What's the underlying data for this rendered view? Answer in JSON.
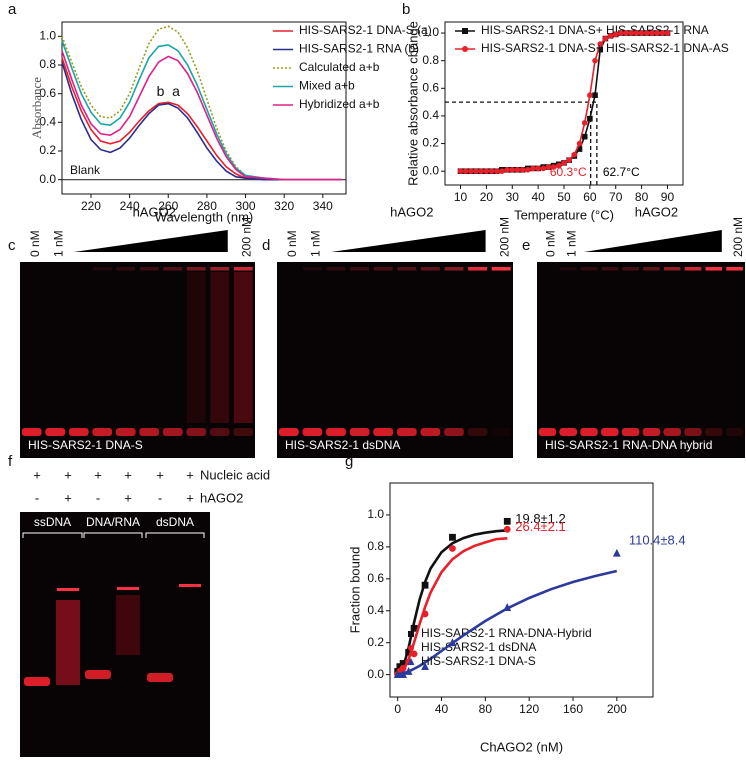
{
  "chart_data": [
    {
      "type": "line",
      "panel": "a",
      "x_label": "Wavelength (nm)",
      "y_label": "Absorbance",
      "x": [
        205,
        210,
        215,
        220,
        225,
        230,
        235,
        240,
        245,
        250,
        255,
        260,
        265,
        270,
        275,
        280,
        285,
        290,
        295,
        300,
        310,
        320,
        330,
        340,
        350
      ],
      "xlim": [
        205,
        352
      ],
      "xticks": [
        220,
        240,
        260,
        280,
        300,
        320,
        340
      ],
      "ylim": [
        -0.1,
        1.1
      ],
      "yticks": [
        {
          "value": 0,
          "label": "0.0"
        },
        0.2,
        0.4,
        0.6,
        0.8,
        {
          "value": 1,
          "label": "1.0"
        }
      ],
      "hline": 0,
      "annotations": [
        "Blank",
        "b",
        "a"
      ],
      "series": [
        {
          "name": "HIS-SARS2-1 DNA-S (a)",
          "color": "#e8202a",
          "line": "solid",
          "values": [
            0.85,
            0.65,
            0.48,
            0.35,
            0.27,
            0.25,
            0.27,
            0.33,
            0.41,
            0.48,
            0.53,
            0.54,
            0.52,
            0.46,
            0.37,
            0.27,
            0.17,
            0.09,
            0.04,
            0.01,
            0,
            0,
            0,
            0,
            0
          ]
        },
        {
          "name": "HIS-SARS2-1 RNA (b)",
          "color": "#2b2d8f",
          "line": "solid",
          "values": [
            0.82,
            0.6,
            0.42,
            0.28,
            0.21,
            0.19,
            0.22,
            0.29,
            0.38,
            0.46,
            0.52,
            0.53,
            0.5,
            0.43,
            0.33,
            0.22,
            0.13,
            0.06,
            0.02,
            0.01,
            0,
            0,
            0,
            0,
            0
          ]
        },
        {
          "name": "Calculated a+b",
          "color": "#9c9a1e",
          "line": "dotted",
          "values": [
            1.0,
            0.82,
            0.65,
            0.52,
            0.44,
            0.43,
            0.48,
            0.6,
            0.78,
            0.95,
            1.05,
            1.07,
            1.03,
            0.92,
            0.76,
            0.56,
            0.36,
            0.2,
            0.09,
            0.03,
            0.01,
            0,
            0,
            0,
            0
          ]
        },
        {
          "name": "Mixed a+b",
          "color": "#1aa6a6",
          "line": "solid",
          "values": [
            0.97,
            0.78,
            0.6,
            0.47,
            0.39,
            0.38,
            0.43,
            0.54,
            0.7,
            0.85,
            0.93,
            0.94,
            0.9,
            0.8,
            0.66,
            0.49,
            0.32,
            0.18,
            0.08,
            0.03,
            0.01,
            0,
            0,
            0,
            0
          ]
        },
        {
          "name": "Hybridized a+b",
          "color": "#e0208a",
          "line": "solid",
          "values": [
            0.9,
            0.7,
            0.52,
            0.39,
            0.32,
            0.31,
            0.35,
            0.44,
            0.58,
            0.72,
            0.82,
            0.86,
            0.83,
            0.74,
            0.61,
            0.45,
            0.29,
            0.16,
            0.07,
            0.02,
            0.01,
            0,
            0,
            0,
            0
          ]
        }
      ]
    },
    {
      "type": "line",
      "panel": "b",
      "x_label": "Temperature (°C)",
      "y_label": "Relative absorbance change",
      "x": [
        10,
        12,
        14,
        16,
        18,
        20,
        22,
        24,
        26,
        28,
        30,
        32,
        34,
        36,
        38,
        40,
        42,
        44,
        46,
        48,
        50,
        52,
        54,
        56,
        58,
        60,
        62,
        64,
        66,
        68,
        70,
        72,
        74,
        76,
        78,
        80,
        82,
        84,
        86,
        88,
        90
      ],
      "xlim": [
        4,
        96
      ],
      "xticks": [
        10,
        20,
        30,
        40,
        50,
        60,
        70,
        80,
        90
      ],
      "ylim": [
        -0.1,
        1.08
      ],
      "yticks": [
        {
          "value": 0,
          "label": "0.0"
        },
        0.2,
        0.4,
        0.6,
        0.8,
        {
          "value": 1,
          "label": "1.0"
        }
      ],
      "hline": 0.5,
      "vlines": [
        {
          "x": 60.3,
          "label": "60.3°C",
          "color": "#e8202a"
        },
        {
          "x": 62.7,
          "label": "62.7°C",
          "color": "#000000"
        }
      ],
      "series": [
        {
          "name": "HIS-SARS2-1 DNA-S+ HIS-SARS2-1 RNA",
          "color": "#111111",
          "line": "solid",
          "marker": "square",
          "values": [
            0,
            0,
            0,
            0,
            0,
            0,
            0,
            0,
            0.01,
            0.01,
            0.01,
            0.01,
            0.01,
            0.02,
            0.02,
            0.02,
            0.03,
            0.03,
            0.04,
            0.05,
            0.06,
            0.08,
            0.11,
            0.16,
            0.25,
            0.38,
            0.55,
            0.88,
            0.96,
            0.98,
            0.99,
            1,
            1,
            1,
            1,
            1,
            1,
            1,
            1,
            1,
            1
          ]
        },
        {
          "name": "HIS-SARS2-1 DNA-S+ HIS-SARS2-1 DNA-AS",
          "color": "#e8202a",
          "line": "solid",
          "marker": "circle",
          "values": [
            0,
            0,
            0,
            0,
            0,
            0,
            0,
            0,
            0,
            0.01,
            0.01,
            0.01,
            0.01,
            0.01,
            0.02,
            0.02,
            0.02,
            0.03,
            0.03,
            0.04,
            0.06,
            0.08,
            0.12,
            0.2,
            0.35,
            0.55,
            0.8,
            0.92,
            0.96,
            0.98,
            0.99,
            1,
            1,
            1,
            1,
            1,
            1,
            1,
            1,
            1,
            1
          ]
        }
      ]
    },
    {
      "type": "scatter",
      "panel": "g",
      "x_label": "ChAGO2 (nM)",
      "y_label": "Fraction bound",
      "xlim": [
        -7,
        233
      ],
      "xticks": [
        0,
        40,
        80,
        120,
        160,
        200
      ],
      "ylim": [
        -0.14,
        1.2
      ],
      "yticks": [
        {
          "value": 0,
          "label": "0.0"
        },
        0.2,
        0.4,
        0.6,
        0.8,
        {
          "value": 1,
          "label": "1.0"
        }
      ],
      "series": [
        {
          "name": "HIS-SARS2-1 RNA-DNA-Hybrid",
          "color": "#111111",
          "marker": "square",
          "annotation": "19.8±1.2",
          "x": [
            0,
            2,
            5,
            10,
            15,
            25,
            50,
            100
          ],
          "values": [
            0.02,
            0.05,
            0.07,
            0.14,
            0.29,
            0.56,
            0.86,
            0.96
          ],
          "fit": {
            "x": [
              0,
              5,
              10,
              15,
              20,
              25,
              30,
              40,
              50,
              60,
              70,
              80,
              90,
              100
            ],
            "values": [
              0,
              0.043,
              0.169,
              0.327,
              0.47,
              0.58,
              0.664,
              0.767,
              0.823,
              0.855,
              0.876,
              0.889,
              0.898,
              0.904
            ]
          }
        },
        {
          "name": "HIS-SARS2-1 dsDNA",
          "color": "#e8202a",
          "marker": "circle",
          "annotation": "26.4±2.1",
          "x": [
            0,
            2,
            5,
            10,
            15,
            25,
            50,
            100
          ],
          "values": [
            0,
            0.02,
            0.04,
            0.08,
            0.13,
            0.38,
            0.79,
            0.91
          ],
          "fit": {
            "x": [
              0,
              5,
              10,
              15,
              20,
              25,
              30,
              40,
              50,
              60,
              70,
              80,
              90,
              100
            ],
            "values": [
              0,
              0.023,
              0.095,
              0.201,
              0.317,
              0.423,
              0.513,
              0.642,
              0.723,
              0.773,
              0.806,
              0.828,
              0.849,
              0.854
            ]
          }
        },
        {
          "name": "HIS-SARS2-1 DNA-S",
          "color": "#2b3a9c",
          "marker": "triangle",
          "annotation": "110.4±8.4",
          "x": [
            0,
            5,
            10,
            25,
            50,
            100,
            200
          ],
          "values": [
            0,
            0,
            0.02,
            0.05,
            0.2,
            0.42,
            0.76
          ],
          "fit": {
            "x": [
              0,
              10,
              20,
              30,
              40,
              50,
              60,
              80,
              100,
              120,
              140,
              160,
              180,
              200
            ],
            "values": [
              0,
              0.019,
              0.055,
              0.099,
              0.148,
              0.198,
              0.246,
              0.336,
              0.415,
              0.48,
              0.535,
              0.58,
              0.617,
              0.649
            ]
          }
        }
      ]
    }
  ],
  "gels": [
    {
      "panel": "c",
      "lanes": [
        "0 nM",
        "1 nM",
        "200 nM"
      ],
      "label": "hAGO2",
      "caption": "HIS-SARS2-1 DNA-S"
    },
    {
      "panel": "d",
      "lanes": [
        "0 nM",
        "1 nM",
        "200 nM"
      ],
      "label": "hAGO2",
      "caption": "HIS-SARS2-1 dsDNA"
    },
    {
      "panel": "e",
      "lanes": [
        "0 nM",
        "1 nM",
        "200 nM"
      ],
      "label": "hAGO2",
      "caption": "HIS-SARS2-1 RNA-DNA hybrid"
    }
  ],
  "gel_f": {
    "panel": "f",
    "row1": [
      "+",
      "+",
      "+",
      "+",
      "+",
      "+"
    ],
    "row1_label": "Nucleic acid",
    "row2": [
      "-",
      "+",
      "-",
      "+",
      "-",
      "+"
    ],
    "row2_label": "hAGO2",
    "groups": [
      "ssDNA",
      "DNA/RNA",
      "dsDNA"
    ]
  }
}
